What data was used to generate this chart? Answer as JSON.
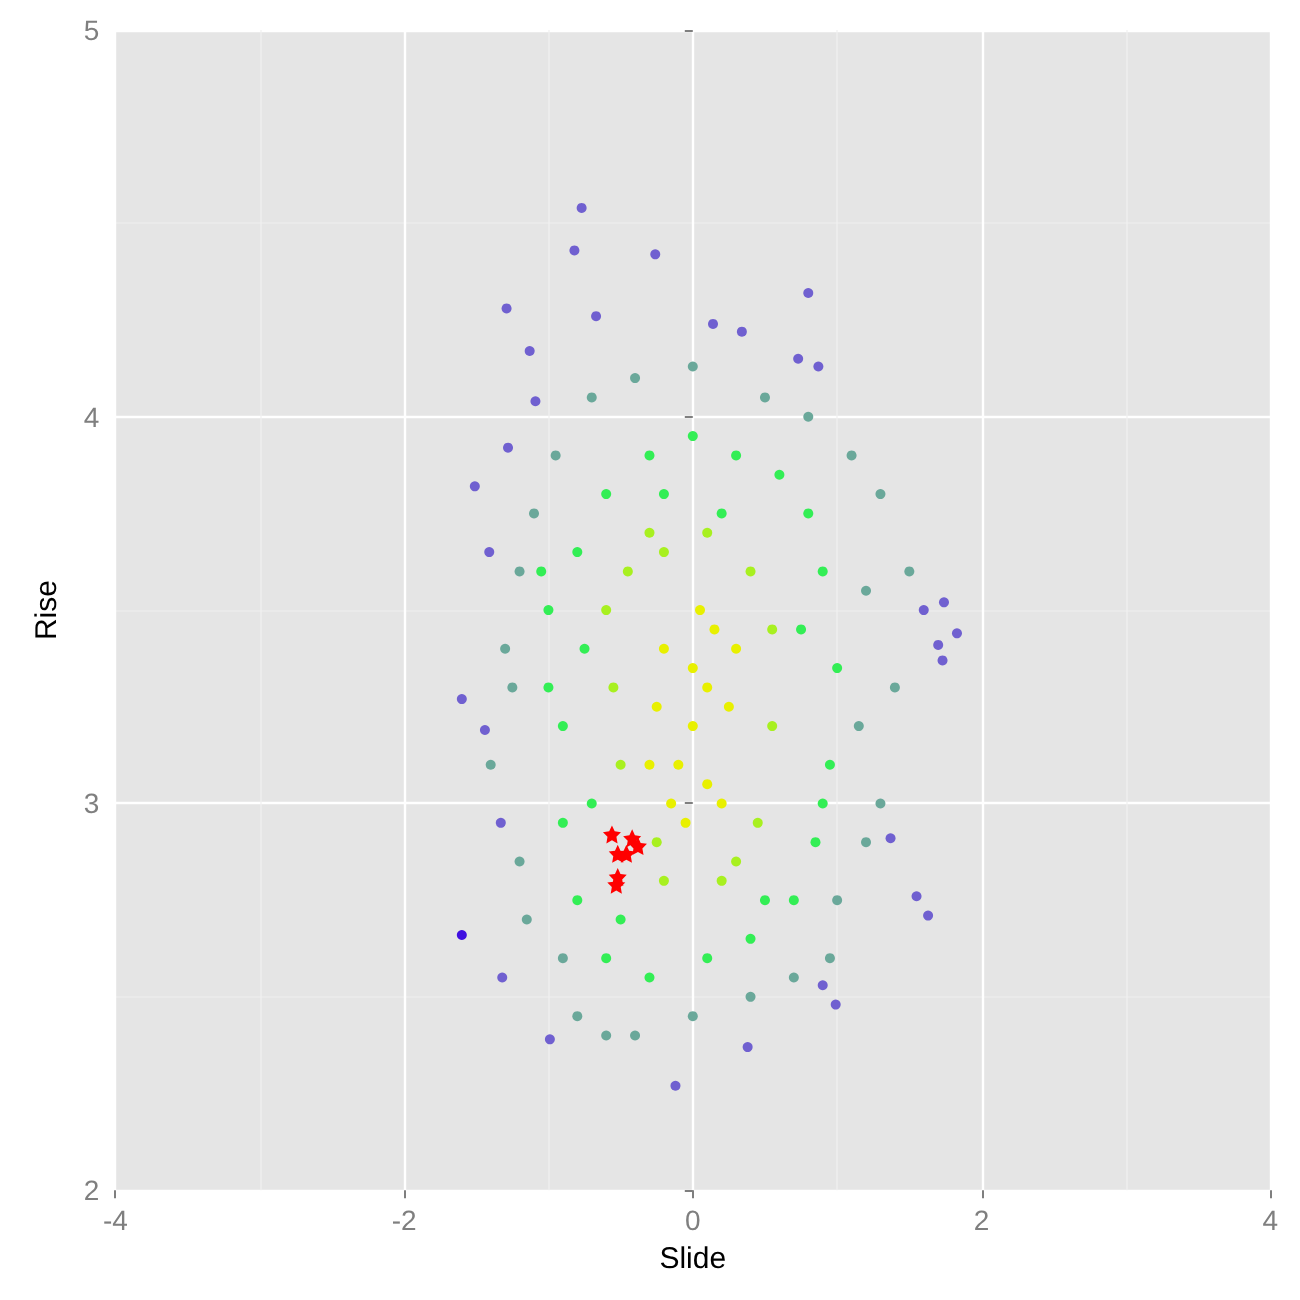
{
  "chart_data": {
    "type": "scatter",
    "xlabel": "Slide",
    "ylabel": "Rise",
    "xlim": [
      -4,
      4
    ],
    "xticks": [
      -4,
      -2,
      0,
      2,
      4
    ],
    "ylim": [
      2,
      5
    ],
    "yticks": [
      2,
      3,
      4,
      5
    ],
    "grid": true,
    "series": [
      {
        "color": "#7060d0",
        "marker": "circle",
        "x": [
          -0.77,
          -0.82,
          -0.26,
          -1.29,
          -0.67,
          0.8,
          -1.13,
          -1.09,
          0.14,
          0.34,
          0.73,
          0.87,
          -1.28,
          -1.51,
          -1.41,
          1.74,
          1.6,
          1.83,
          1.7,
          1.73,
          -1.6,
          -1.44,
          -1.33,
          1.37,
          1.55,
          1.63,
          -1.32,
          -0.99,
          -0.12,
          0.9,
          0.99,
          0.38
        ],
        "values": [
          4.54,
          4.43,
          4.42,
          4.28,
          4.26,
          4.32,
          4.17,
          4.04,
          4.24,
          4.22,
          4.15,
          4.13,
          3.92,
          3.82,
          3.65,
          3.52,
          3.5,
          3.44,
          3.41,
          3.37,
          3.27,
          3.19,
          2.95,
          2.91,
          2.76,
          2.71,
          2.55,
          2.39,
          2.27,
          2.53,
          2.48,
          2.37
        ]
      },
      {
        "color": "#4010e0",
        "marker": "circle",
        "x": [
          -1.6
        ],
        "values": [
          2.66
        ]
      },
      {
        "color": "#6aa89a",
        "marker": "circle",
        "x": [
          -1.1,
          -1.2,
          -1.3,
          -1.4,
          -1.2,
          -0.9,
          -0.8,
          -0.6,
          -0.4,
          0.0,
          0.4,
          0.7,
          1.0,
          1.2,
          1.3,
          1.4,
          1.5,
          1.3,
          1.1,
          0.8,
          0.5,
          0.0,
          -0.4,
          -0.7,
          -0.95,
          1.2,
          -1.25,
          1.15,
          -1.15,
          0.95
        ],
        "values": [
          3.75,
          3.6,
          3.4,
          3.1,
          2.85,
          2.6,
          2.45,
          2.4,
          2.4,
          2.45,
          2.5,
          2.55,
          2.75,
          2.9,
          3.0,
          3.3,
          3.6,
          3.8,
          3.9,
          4.0,
          4.05,
          4.13,
          4.1,
          4.05,
          3.9,
          3.55,
          3.3,
          3.2,
          2.7,
          2.6
        ]
      },
      {
        "color": "#33ee55",
        "marker": "circle",
        "x": [
          -1.0,
          -0.9,
          -0.9,
          -0.8,
          -0.6,
          -0.3,
          0.1,
          0.4,
          0.7,
          0.85,
          0.95,
          1.0,
          0.9,
          0.8,
          0.6,
          0.3,
          0.0,
          -0.3,
          -0.6,
          -0.8,
          -1.0,
          0.9,
          -0.7,
          0.75,
          -0.75,
          0.5,
          -0.5,
          -0.2,
          0.2,
          -1.05
        ],
        "values": [
          3.5,
          3.2,
          2.95,
          2.75,
          2.6,
          2.55,
          2.6,
          2.65,
          2.75,
          2.9,
          3.1,
          3.35,
          3.6,
          3.75,
          3.85,
          3.9,
          3.95,
          3.9,
          3.8,
          3.65,
          3.3,
          3.0,
          3.0,
          3.45,
          3.4,
          2.75,
          2.7,
          3.8,
          3.75,
          3.6
        ]
      },
      {
        "color": "#a8f020",
        "marker": "circle",
        "x": [
          -0.6,
          -0.5,
          -0.25,
          -0.2,
          0.2,
          0.45,
          0.55,
          0.55,
          0.4,
          0.1,
          -0.2,
          -0.45,
          -0.55,
          0.3,
          -0.3
        ],
        "values": [
          3.5,
          3.1,
          2.9,
          2.8,
          2.8,
          2.95,
          3.2,
          3.45,
          3.6,
          3.7,
          3.65,
          3.6,
          3.3,
          2.85,
          3.7
        ]
      },
      {
        "color": "#e8f000",
        "marker": "circle",
        "x": [
          0,
          0.1,
          -0.1,
          0.2,
          -0.2,
          0.15,
          -0.15,
          0.05,
          -0.05,
          0.25,
          -0.25,
          0.3,
          -0.3,
          0.0,
          0.1
        ],
        "values": [
          3.2,
          3.3,
          3.1,
          3.0,
          3.4,
          3.45,
          3.0,
          3.5,
          2.95,
          3.25,
          3.25,
          3.4,
          3.1,
          3.35,
          3.05
        ]
      },
      {
        "color": "#ff0000",
        "marker": "star",
        "x": [
          -0.56,
          -0.42,
          -0.38,
          -0.52,
          -0.46,
          -0.52,
          -0.53
        ],
        "values": [
          2.92,
          2.91,
          2.89,
          2.87,
          2.87,
          2.81,
          2.79
        ]
      }
    ]
  }
}
